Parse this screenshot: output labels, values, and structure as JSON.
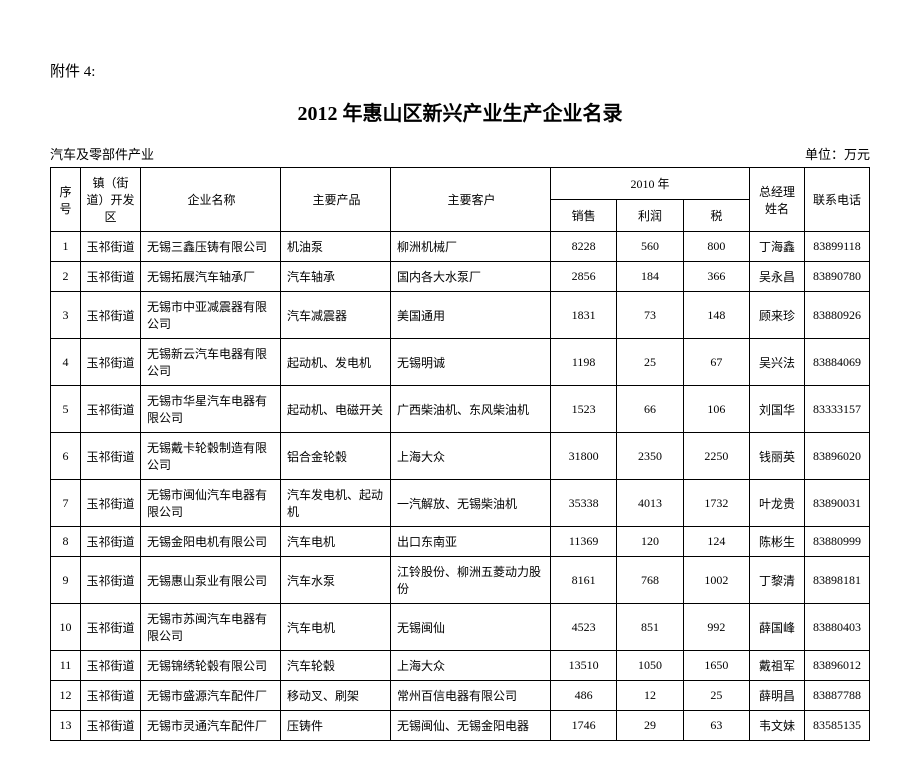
{
  "attachment_label": "附件 4:",
  "title": "2012 年惠山区新兴产业生产企业名录",
  "subtitle_left": "汽车及零部件产业",
  "subtitle_right": "单位：万元",
  "headers": {
    "seq": "序号",
    "district": "镇（街道）开发区",
    "company": "企业名称",
    "product": "主要产品",
    "customer": "主要客户",
    "year": "2010 年",
    "sales": "销售",
    "profit": "利润",
    "tax": "税",
    "manager": "总经理姓名",
    "phone": "联系电话"
  },
  "colors": {
    "background": "#ffffff",
    "border": "#000000",
    "text": "#000000"
  },
  "typography": {
    "title_fontsize": 20,
    "body_fontsize": 12,
    "subtitle_fontsize": 13,
    "font_family": "SimSun"
  },
  "rows": [
    {
      "seq": "1",
      "district": "玉祁街道",
      "company": "无锡三鑫压铸有限公司",
      "product": "机油泵",
      "customer": "柳洲机械厂",
      "sales": "8228",
      "profit": "560",
      "tax": "800",
      "manager": "丁海鑫",
      "phone": "83899118"
    },
    {
      "seq": "2",
      "district": "玉祁街道",
      "company": "无锡拓展汽车轴承厂",
      "product": "汽车轴承",
      "customer": "国内各大水泵厂",
      "sales": "2856",
      "profit": "184",
      "tax": "366",
      "manager": "吴永昌",
      "phone": "83890780"
    },
    {
      "seq": "3",
      "district": "玉祁街道",
      "company": "无锡市中亚减震器有限公司",
      "product": "汽车减震器",
      "customer": "美国通用",
      "sales": "1831",
      "profit": "73",
      "tax": "148",
      "manager": "顾来珍",
      "phone": "83880926"
    },
    {
      "seq": "4",
      "district": "玉祁街道",
      "company": "无锡新云汽车电器有限公司",
      "product": "起动机、发电机",
      "customer": "无锡明诚",
      "sales": "1198",
      "profit": "25",
      "tax": "67",
      "manager": "吴兴法",
      "phone": "83884069"
    },
    {
      "seq": "5",
      "district": "玉祁街道",
      "company": "无锡市华星汽车电器有限公司",
      "product": "起动机、电磁开关",
      "customer": "广西柴油机、东风柴油机",
      "sales": "1523",
      "profit": "66",
      "tax": "106",
      "manager": "刘国华",
      "phone": "83333157"
    },
    {
      "seq": "6",
      "district": "玉祁街道",
      "company": "无锡戴卡轮毂制造有限公司",
      "product": "铝合金轮毂",
      "customer": "上海大众",
      "sales": "31800",
      "profit": "2350",
      "tax": "2250",
      "manager": "钱丽英",
      "phone": "83896020"
    },
    {
      "seq": "7",
      "district": "玉祁街道",
      "company": "无锡市闽仙汽车电器有限公司",
      "product": "汽车发电机、起动机",
      "customer": "一汽解放、无锡柴油机",
      "sales": "35338",
      "profit": "4013",
      "tax": "1732",
      "manager": "叶龙贵",
      "phone": "83890031"
    },
    {
      "seq": "8",
      "district": "玉祁街道",
      "company": "无锡金阳电机有限公司",
      "product": "汽车电机",
      "customer": "出口东南亚",
      "sales": "11369",
      "profit": "120",
      "tax": "124",
      "manager": "陈彬生",
      "phone": "83880999"
    },
    {
      "seq": "9",
      "district": "玉祁街道",
      "company": "无锡惠山泵业有限公司",
      "product": "汽车水泵",
      "customer": "江铃股份、柳洲五菱动力股份",
      "sales": "8161",
      "profit": "768",
      "tax": "1002",
      "manager": "丁黎清",
      "phone": "83898181"
    },
    {
      "seq": "10",
      "district": "玉祁街道",
      "company": "无锡市苏闽汽车电器有限公司",
      "product": "汽车电机",
      "customer": "无锡闽仙",
      "sales": "4523",
      "profit": "851",
      "tax": "992",
      "manager": "薛国峰",
      "phone": "83880403"
    },
    {
      "seq": "11",
      "district": "玉祁街道",
      "company": "无锡锦绣轮毂有限公司",
      "product": "汽车轮毂",
      "customer": "上海大众",
      "sales": "13510",
      "profit": "1050",
      "tax": "1650",
      "manager": "戴祖军",
      "phone": "83896012"
    },
    {
      "seq": "12",
      "district": "玉祁街道",
      "company": "无锡市盛源汽车配件厂",
      "product": "移动叉、刷架",
      "customer": "常州百信电器有限公司",
      "sales": "486",
      "profit": "12",
      "tax": "25",
      "manager": "薛明昌",
      "phone": "83887788"
    },
    {
      "seq": "13",
      "district": "玉祁街道",
      "company": "无锡市灵通汽车配件厂",
      "product": "压铸件",
      "customer": "无锡闽仙、无锡金阳电器",
      "sales": "1746",
      "profit": "29",
      "tax": "63",
      "manager": "韦文妹",
      "phone": "83585135"
    }
  ]
}
